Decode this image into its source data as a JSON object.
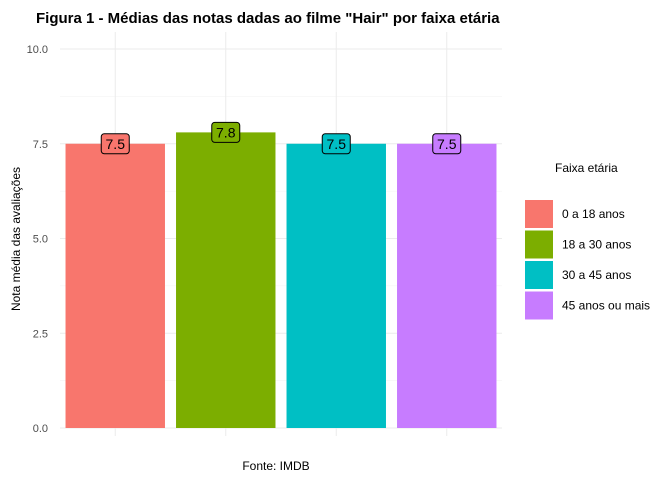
{
  "chart_data": {
    "type": "bar",
    "title": "Figura 1 - Médias das notas dadas ao filme \"Hair\" por faixa etária",
    "xlabel": "Fonte: IMDB",
    "ylabel": "Nota média das avaliações",
    "ylim": [
      0,
      10.5
    ],
    "yticks": [
      0.0,
      2.5,
      5.0,
      7.5,
      10.0
    ],
    "ytick_labels": [
      "0.0",
      "2.5",
      "5.0",
      "7.5",
      "10.0"
    ],
    "categories": [
      "0 a 18 anos",
      "18 a 30 anos",
      "30 a 45 anos",
      "45 anos ou mais"
    ],
    "values": [
      7.5,
      7.8,
      7.5,
      7.5
    ],
    "data_labels": [
      "7.5",
      "7.8",
      "7.5",
      "7.5"
    ],
    "colors": [
      "#F8766D",
      "#7CAE00",
      "#00BFC4",
      "#C77CFF"
    ],
    "grid": true,
    "legend": {
      "title": "Faixa etária",
      "position": "right",
      "entries": [
        "0 a 18 anos",
        "18 a 30 anos",
        "30 a 45 anos",
        "45 anos ou mais"
      ]
    }
  }
}
